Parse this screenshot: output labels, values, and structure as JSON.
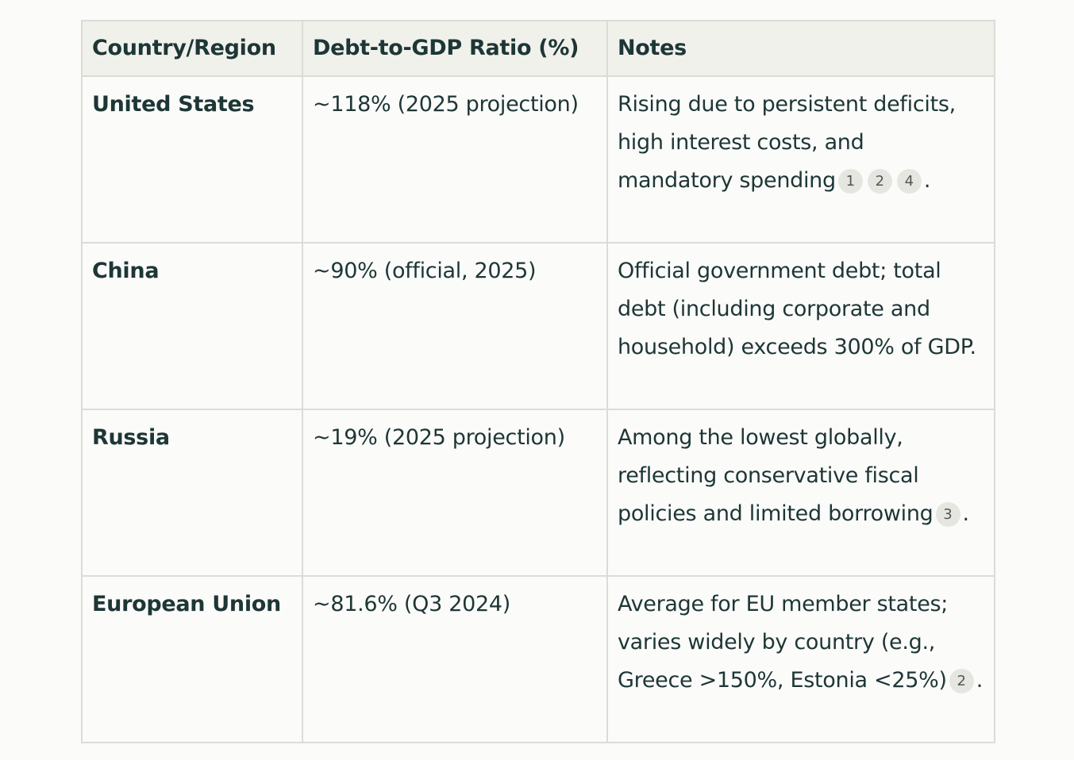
{
  "table": {
    "headers": [
      "Country/Region",
      "Debt-to-GDP Ratio (%)",
      "Notes"
    ],
    "rows": [
      {
        "country": "United States",
        "ratio": "~118% (2025 projection)",
        "notes": {
          "text": "Rising due to persistent deficits, high interest costs, and mandatory spending",
          "citations": [
            "1",
            "2",
            "4"
          ],
          "after": "."
        }
      },
      {
        "country": "China",
        "ratio": "~90% (official, 2025)",
        "notes": {
          "text": "Official government debt; total debt (including corporate and household) exceeds 300% of GDP."
        }
      },
      {
        "country": "Russia",
        "ratio": "~19% (2025 projection)",
        "notes": {
          "text": "Among the lowest globally, reflecting conservative fiscal policies and limited borrowing",
          "citations": [
            "3"
          ],
          "after": "."
        }
      },
      {
        "country": "European Union",
        "ratio": "~81.6% (Q3 2024)",
        "notes": {
          "text": "Average for EU member states; varies widely by country (e.g., Greece >150%, Estonia <25%)",
          "citations": [
            "2"
          ],
          "after": "."
        }
      }
    ]
  }
}
